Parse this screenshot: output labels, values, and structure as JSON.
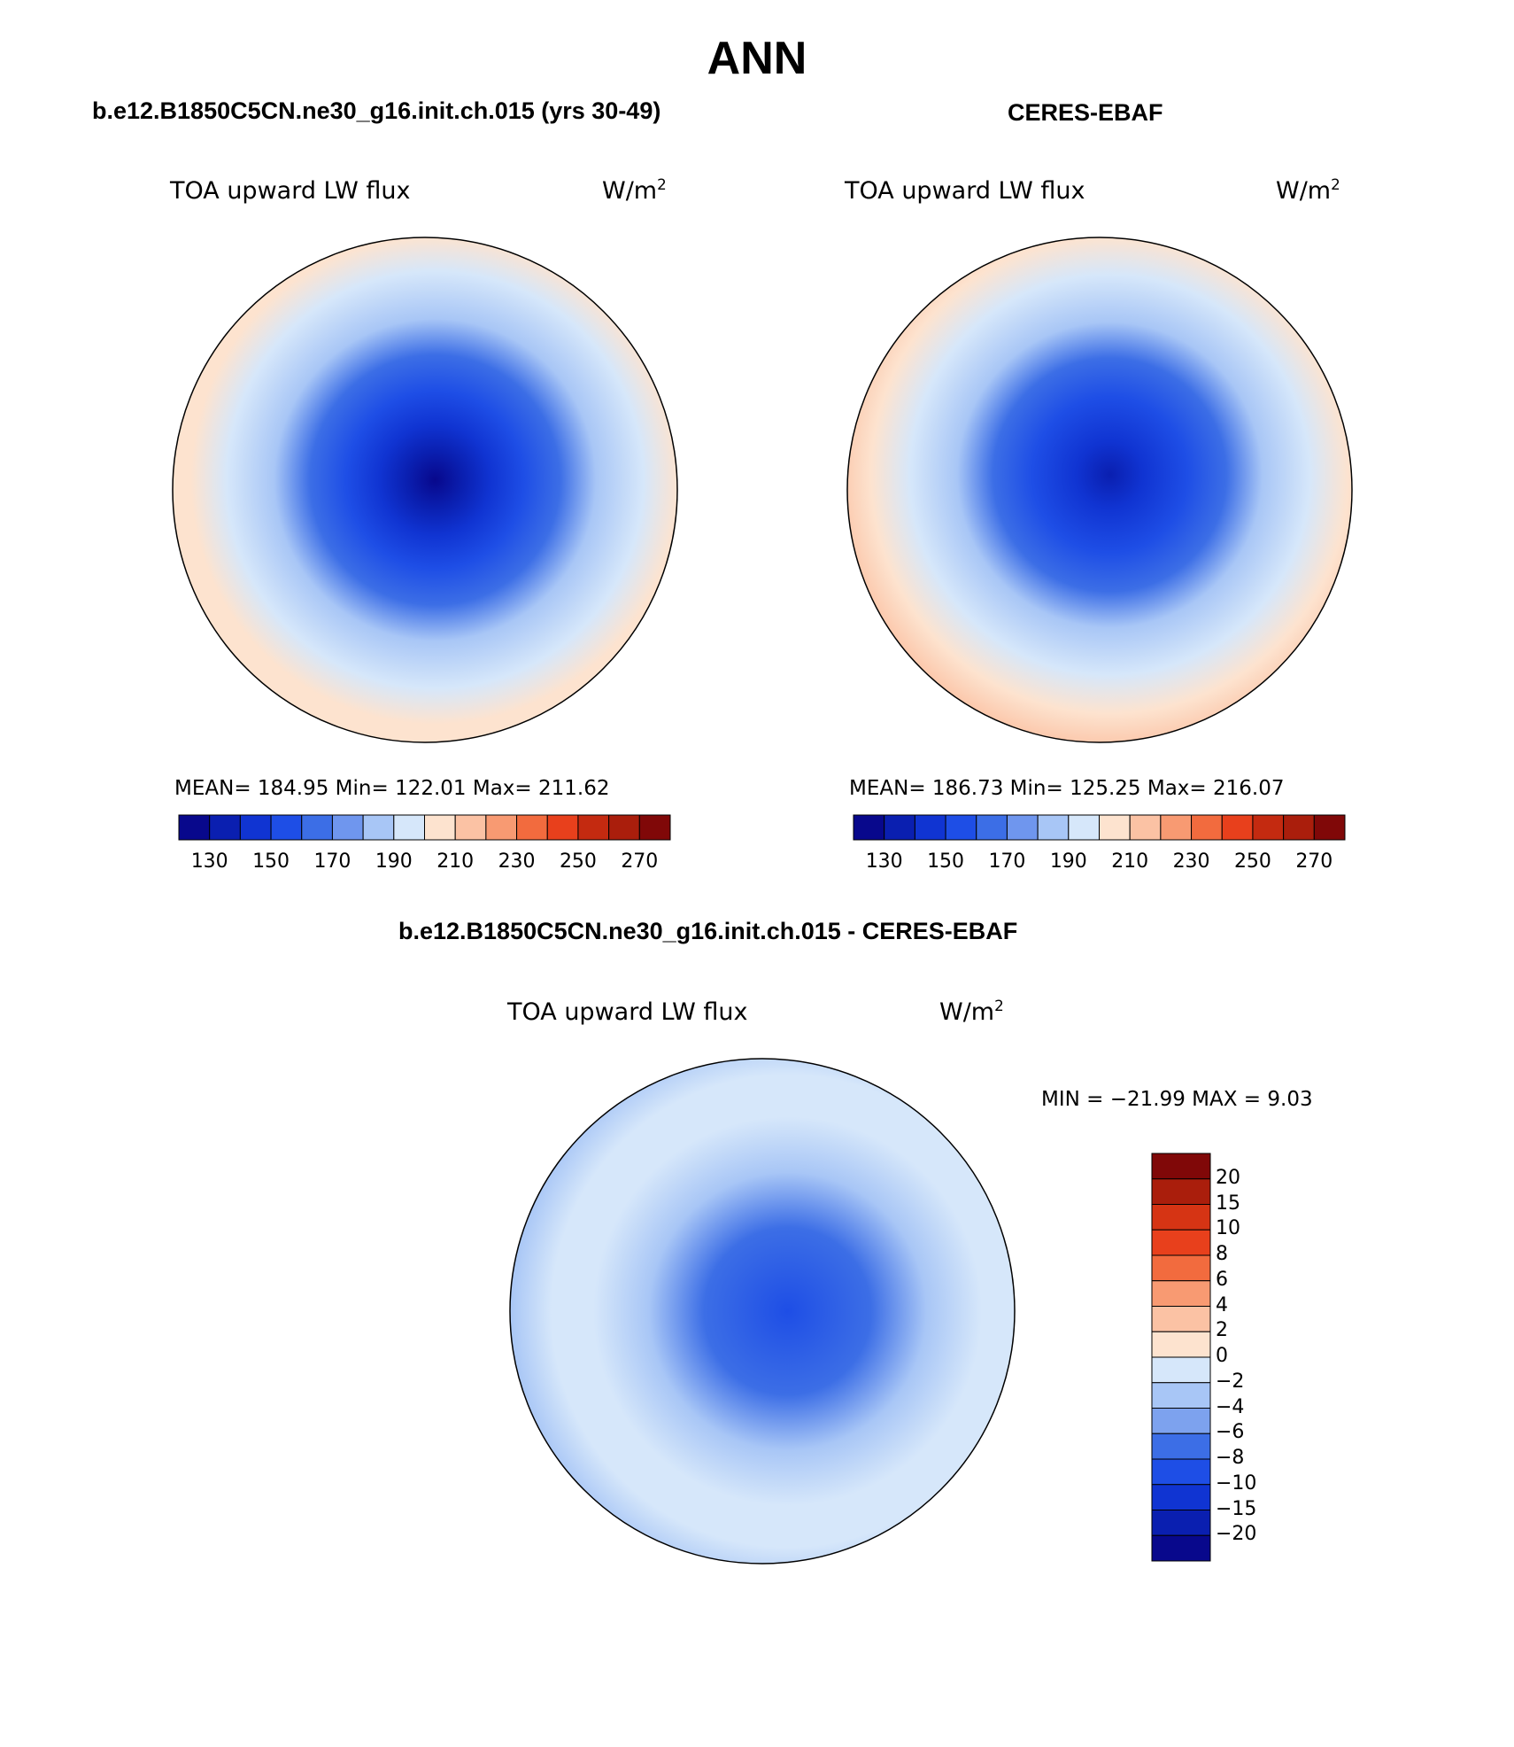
{
  "page": {
    "title": "ANN",
    "top_left_title": "b.e12.B1850C5CN.ne30_g16.init.ch.015 (yrs 30-49)",
    "top_right_title": "CERES-EBAF",
    "bottom_title": "b.e12.B1850C5CN.ne30_g16.init.ch.015 - CERES-EBAF"
  },
  "panels": [
    {
      "id": "model",
      "variable": "TOA upward LW flux",
      "units_base": "W/m",
      "units_exp": "2",
      "stats": "MEAN= 184.95   Min= 122.01   Max= 211.62"
    },
    {
      "id": "obs",
      "variable": "TOA upward LW flux",
      "units_base": "W/m",
      "units_exp": "2",
      "stats": "MEAN= 186.73   Min= 125.25   Max= 216.07"
    },
    {
      "id": "diff",
      "variable": "TOA upward LW flux",
      "units_base": "W/m",
      "units_exp": "2",
      "stats": "MIN = −21.99  MAX =    9.03"
    }
  ],
  "abs_colorbar": {
    "colors": [
      "#08088c",
      "#0a1fb0",
      "#1034d2",
      "#1e4ee6",
      "#3c6ee6",
      "#6f96ee",
      "#a8c6f6",
      "#d6e7fa",
      "#fde3cf",
      "#fbc2a4",
      "#f89a72",
      "#f26b3e",
      "#e8401c",
      "#c42a10",
      "#aa1e0c",
      "#800808"
    ],
    "tick_labels": [
      "130",
      "150",
      "170",
      "190",
      "210",
      "230",
      "250",
      "270"
    ]
  },
  "diff_colorbar": {
    "colors": [
      "#800808",
      "#aa1e0c",
      "#d63414",
      "#e8401c",
      "#f26b3e",
      "#f89a72",
      "#fbc2a4",
      "#fde3cf",
      "#d6e7fa",
      "#a8c6f6",
      "#7da2ee",
      "#3c6ee6",
      "#1e4ee6",
      "#1034d2",
      "#0a1fb0",
      "#08088c"
    ],
    "tick_labels": [
      "20",
      "15",
      "10",
      "8",
      "6",
      "4",
      "2",
      "0",
      "−2",
      "−4",
      "−6",
      "−8",
      "−10",
      "−15",
      "−20"
    ]
  }
}
